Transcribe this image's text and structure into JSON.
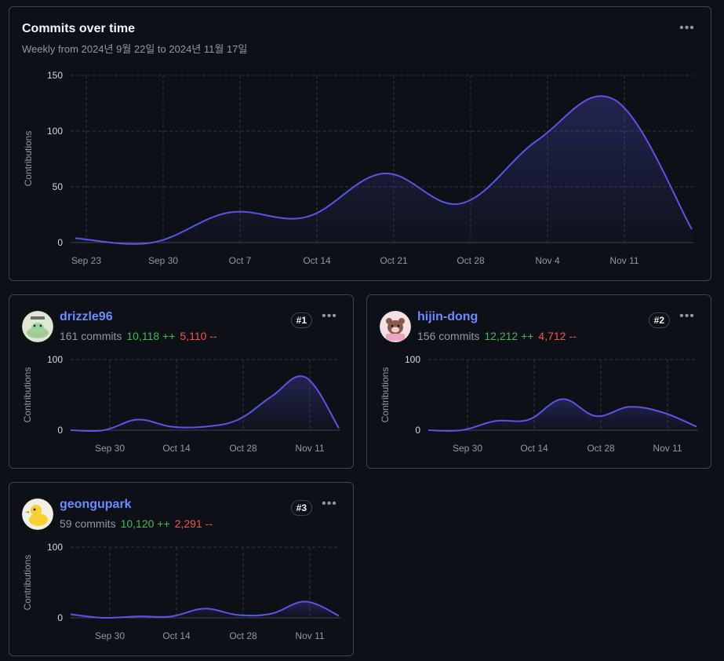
{
  "main": {
    "title": "Commits over time",
    "subtitle": "Weekly from 2024년 9월 22일 to 2024년 11월 17일",
    "more_icon": "kebab-horizontal-icon"
  },
  "colors": {
    "line": "#5a55e6",
    "add": "#3fb950",
    "del": "#f85149",
    "accent": "#6b8cff"
  },
  "chart_data": [
    {
      "type": "area",
      "ylabel": "Contributions",
      "yticks": [
        0,
        50,
        100,
        150
      ],
      "ylim": [
        0,
        150
      ],
      "xticks": [
        "Sep 23",
        "Sep 30",
        "Oct 7",
        "Oct 14",
        "Oct 21",
        "Oct 28",
        "Nov 4",
        "Nov 11"
      ],
      "x": [
        "Sep 22",
        "Sep 29",
        "Oct 6",
        "Oct 13",
        "Oct 20",
        "Oct 27",
        "Nov 3",
        "Nov 10",
        "Nov 17"
      ],
      "values": [
        4,
        0,
        27,
        23,
        62,
        35,
        92,
        128,
        12
      ],
      "grid": true
    },
    {
      "type": "area",
      "ylabel": "Contributions",
      "yticks": [
        0,
        100
      ],
      "ylim": [
        0,
        100
      ],
      "xticks": [
        "Sep 30",
        "Oct 14",
        "Oct 28",
        "Nov 11"
      ],
      "x": [
        "Sep 22",
        "Sep 29",
        "Oct 6",
        "Oct 13",
        "Oct 20",
        "Oct 27",
        "Nov 3",
        "Nov 10",
        "Nov 17"
      ],
      "values": [
        0,
        0,
        15,
        5,
        5,
        15,
        48,
        75,
        3
      ]
    },
    {
      "type": "area",
      "ylabel": "Contributions",
      "yticks": [
        0,
        100
      ],
      "ylim": [
        0,
        100
      ],
      "xticks": [
        "Sep 30",
        "Oct 14",
        "Oct 28",
        "Nov 11"
      ],
      "x": [
        "Sep 22",
        "Sep 29",
        "Oct 6",
        "Oct 13",
        "Oct 20",
        "Oct 27",
        "Nov 3",
        "Nov 10",
        "Nov 17"
      ],
      "values": [
        0,
        0,
        13,
        15,
        44,
        20,
        33,
        25,
        5
      ]
    },
    {
      "type": "area",
      "ylabel": "Contributions",
      "yticks": [
        0,
        100
      ],
      "ylim": [
        0,
        100
      ],
      "xticks": [
        "Sep 30",
        "Oct 14",
        "Oct 28",
        "Nov 11"
      ],
      "x": [
        "Sep 22",
        "Sep 29",
        "Oct 6",
        "Oct 13",
        "Oct 20",
        "Oct 27",
        "Nov 3",
        "Nov 10",
        "Nov 17"
      ],
      "values": [
        5,
        0,
        2,
        2,
        13,
        4,
        6,
        23,
        3
      ]
    }
  ],
  "contributors": [
    {
      "name": "drizzle96",
      "commits": "161 commits",
      "additions": "10,118 ++",
      "deletions": "5,110 --",
      "rank": "#1",
      "avatar": "frog-avatar"
    },
    {
      "name": "hijin-dong",
      "commits": "156 commits",
      "additions": "12,212 ++",
      "deletions": "4,712 --",
      "rank": "#2",
      "avatar": "bear-avatar"
    },
    {
      "name": "geongupark",
      "commits": "59 commits",
      "additions": "10,120 ++",
      "deletions": "2,291 --",
      "rank": "#3",
      "avatar": "duck-avatar"
    }
  ]
}
